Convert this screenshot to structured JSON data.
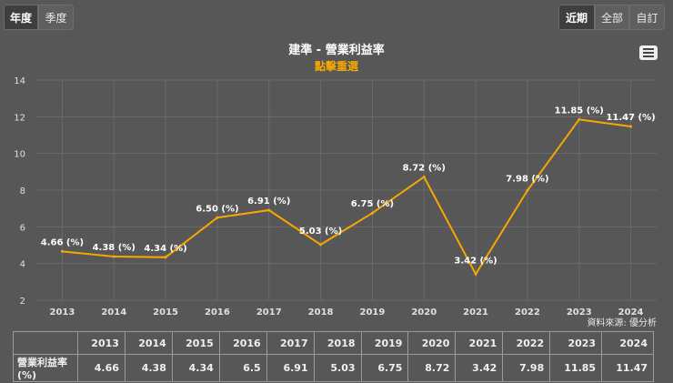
{
  "period_tabs": {
    "annual": "年度",
    "quarterly": "季度"
  },
  "range_tabs": {
    "recent": "近期",
    "all": "全部",
    "custom": "自訂"
  },
  "chart_data": {
    "type": "line",
    "title": "建準 - 營業利益率",
    "subtitle": "點擊重選",
    "categories": [
      "2013",
      "2014",
      "2015",
      "2016",
      "2017",
      "2018",
      "2019",
      "2020",
      "2021",
      "2022",
      "2023",
      "2024"
    ],
    "series": [
      {
        "name": "營業利益率(%)",
        "values": [
          4.66,
          4.38,
          4.34,
          6.5,
          6.91,
          5.03,
          6.75,
          8.72,
          3.42,
          7.98,
          11.85,
          11.47
        ],
        "color": "#f7a700"
      }
    ],
    "data_labels": [
      "4.66 (%)",
      "4.38 (%)",
      "4.34 (%)",
      "6.50 (%)",
      "6.91 (%)",
      "5.03 (%)",
      "6.75 (%)",
      "8.72 (%)",
      "3.42 (%)",
      "7.98 (%)",
      "11.85 (%)",
      "11.47 (%)"
    ],
    "y_ticks": [
      2,
      4,
      6,
      8,
      10,
      12,
      14
    ],
    "ylim": [
      2,
      14
    ],
    "grid": true
  },
  "source_text": "資料來源: 優分析",
  "table": {
    "row_label": "營業利益率(%)",
    "values": [
      "4.66",
      "4.38",
      "4.34",
      "6.5",
      "6.91",
      "5.03",
      "6.75",
      "8.72",
      "3.42",
      "7.98",
      "11.85",
      "11.47"
    ]
  }
}
